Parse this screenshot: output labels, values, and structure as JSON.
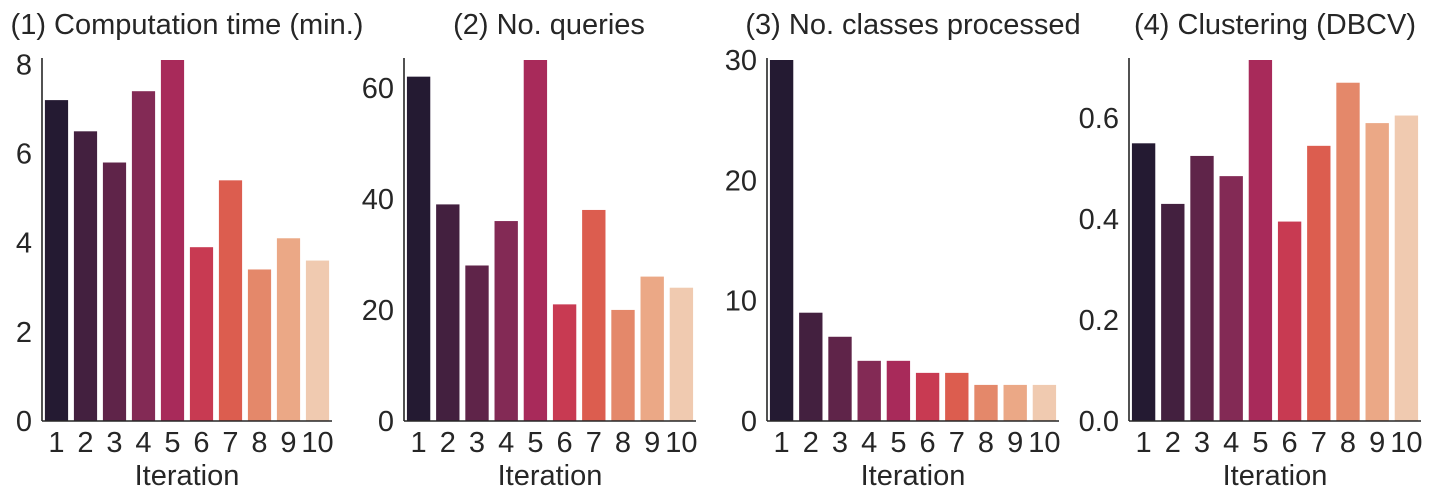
{
  "palette": [
    "#241a32",
    "#43203f",
    "#5f2449",
    "#832a55",
    "#a82a5a",
    "#c83a52",
    "#dc5d4f",
    "#e4886a",
    "#eba886",
    "#f0cab0"
  ],
  "chart_data": [
    {
      "type": "bar",
      "title": "(1) Computation time (min.)",
      "xlabel": "Iteration",
      "ylabel": "",
      "categories": [
        "1",
        "2",
        "3",
        "4",
        "5",
        "6",
        "7",
        "8",
        "9",
        "10"
      ],
      "values": [
        7.2,
        6.5,
        5.8,
        7.4,
        8.1,
        3.9,
        5.4,
        3.4,
        4.1,
        3.6
      ],
      "ylim": [
        0,
        8.1
      ],
      "yticks": [
        0,
        2,
        4,
        6,
        8
      ],
      "ytick_labels": [
        "0",
        "2",
        "4",
        "6",
        "8"
      ],
      "grid": false,
      "legend": "none"
    },
    {
      "type": "bar",
      "title": "(2) No. queries",
      "xlabel": "Iteration",
      "ylabel": "",
      "categories": [
        "1",
        "2",
        "3",
        "4",
        "5",
        "6",
        "7",
        "8",
        "9",
        "10"
      ],
      "values": [
        62,
        39,
        28,
        36,
        65,
        21,
        38,
        20,
        26,
        24
      ],
      "ylim": [
        0,
        65
      ],
      "yticks": [
        0,
        20,
        40,
        60
      ],
      "ytick_labels": [
        "0",
        "20",
        "40",
        "60"
      ],
      "grid": false,
      "legend": "none"
    },
    {
      "type": "bar",
      "title": "(3) No. classes processed",
      "xlabel": "Iteration",
      "ylabel": "",
      "categories": [
        "1",
        "2",
        "3",
        "4",
        "5",
        "6",
        "7",
        "8",
        "9",
        "10"
      ],
      "values": [
        30,
        9,
        7,
        5,
        5,
        4,
        4,
        3,
        3,
        3
      ],
      "ylim": [
        0,
        30
      ],
      "yticks": [
        0,
        10,
        20,
        30
      ],
      "ytick_labels": [
        "0",
        "10",
        "20",
        "30"
      ],
      "grid": false,
      "legend": "none"
    },
    {
      "type": "bar",
      "title": "(4) Clustering (DBCV)",
      "xlabel": "Iteration",
      "ylabel": "",
      "categories": [
        "1",
        "2",
        "3",
        "4",
        "5",
        "6",
        "7",
        "8",
        "9",
        "10"
      ],
      "values": [
        0.55,
        0.43,
        0.525,
        0.485,
        0.715,
        0.395,
        0.545,
        0.67,
        0.59,
        0.605
      ],
      "ylim": [
        0,
        0.715
      ],
      "yticks": [
        0,
        0.2,
        0.4,
        0.6
      ],
      "ytick_labels": [
        "0.0",
        "0.2",
        "0.4",
        "0.6"
      ],
      "grid": false,
      "legend": "none"
    }
  ]
}
